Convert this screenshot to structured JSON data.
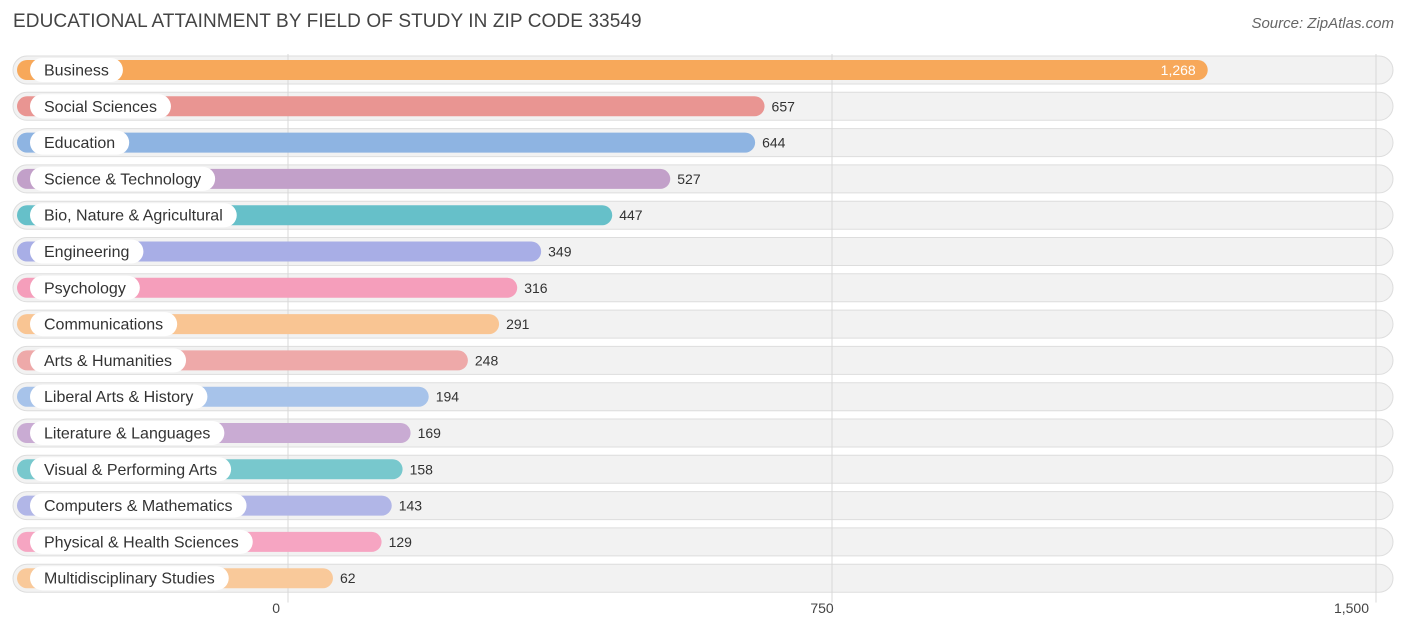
{
  "chart_data": {
    "type": "bar",
    "orientation": "horizontal",
    "title": "EDUCATIONAL ATTAINMENT BY FIELD OF STUDY IN ZIP CODE 33549",
    "source": "Source: ZipAtlas.com",
    "categories": [
      "Business",
      "Social Sciences",
      "Education",
      "Science & Technology",
      "Bio, Nature & Agricultural",
      "Engineering",
      "Psychology",
      "Communications",
      "Arts & Humanities",
      "Liberal Arts & History",
      "Literature & Languages",
      "Visual & Performing Arts",
      "Computers & Mathematics",
      "Physical & Health Sciences",
      "Multidisciplinary Studies"
    ],
    "values": [
      1268,
      657,
      644,
      527,
      447,
      349,
      316,
      291,
      248,
      194,
      169,
      158,
      143,
      129,
      62
    ],
    "value_labels": [
      "1,268",
      "657",
      "644",
      "527",
      "447",
      "349",
      "316",
      "291",
      "248",
      "194",
      "169",
      "158",
      "143",
      "129",
      "62"
    ],
    "colors": [
      "#f7a85a",
      "#e99592",
      "#8eb4e2",
      "#c2a0c9",
      "#66c0c9",
      "#a8aee6",
      "#f59ebb",
      "#f9c593",
      "#eea9a9",
      "#a7c3ea",
      "#c9abd3",
      "#78c8cd",
      "#b1b6e7",
      "#f6a5c2",
      "#f9c99a"
    ],
    "xlim": [
      0,
      1500
    ],
    "xticks": [
      0,
      750,
      1500
    ],
    "xtick_labels": [
      "0",
      "750",
      "1,500"
    ],
    "grid": true,
    "xlabel": "",
    "ylabel": ""
  }
}
